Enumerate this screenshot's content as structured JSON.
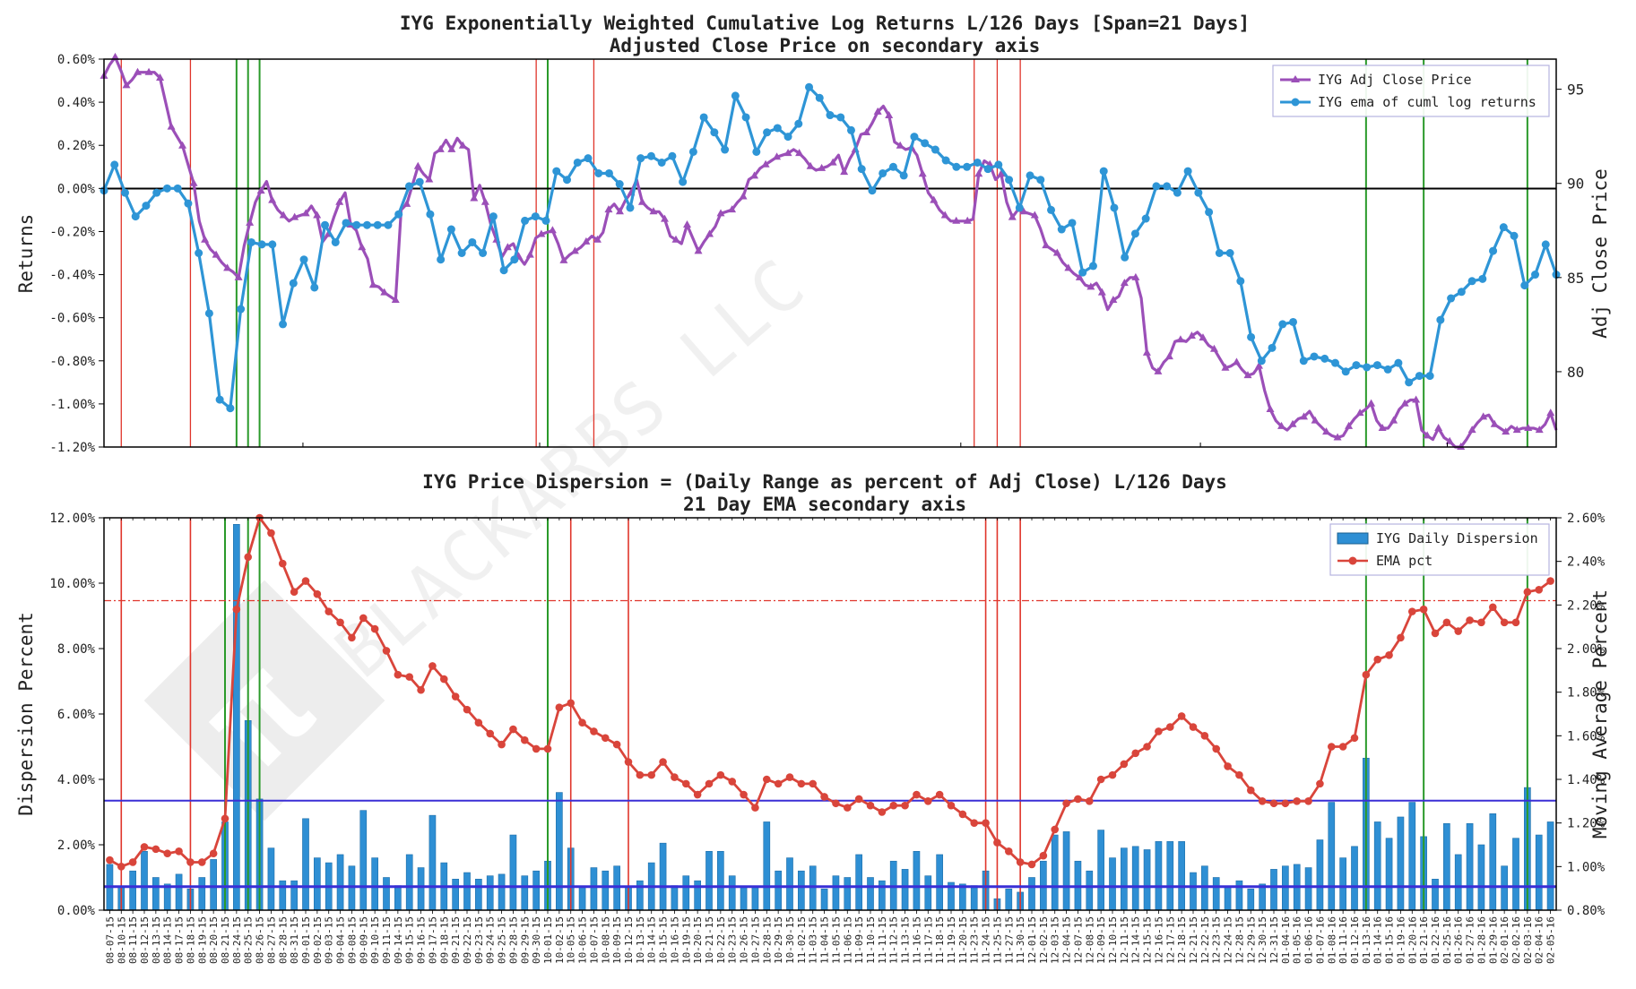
{
  "chart_data": [
    {
      "type": "line",
      "title": "IYG Exponentially Weighted Cumulative Log Returns L/126 Days [Span=21 Days]",
      "subtitle": "Adjusted Close Price on secondary axis",
      "ylabel": "Returns",
      "y2label": "Adj Close Price",
      "ylim": [
        -1.2,
        0.6
      ],
      "y2lim": [
        76.0,
        96.6
      ],
      "yticks": [
        "0.60%",
        "0.40%",
        "0.20%",
        "0.00%",
        "-0.20%",
        "-0.40%",
        "-0.60%",
        "-0.80%",
        "-1.00%",
        "-1.20%"
      ],
      "y2ticks": [
        "95",
        "90",
        "85",
        "80"
      ],
      "legend_position": "top-right",
      "series": [
        {
          "name": "IYG Adj Close Price",
          "axis": "secondary",
          "color": "#9b4fb8",
          "marker": "triangle",
          "values": [
            95.7,
            96.3,
            96.7,
            96.0,
            95.2,
            95.5,
            95.9,
            95.9,
            95.9,
            95.9,
            95.6,
            94.3,
            93.0,
            92.5,
            92.0,
            91.0,
            90.0,
            88.0,
            87.0,
            86.5,
            86.2,
            85.8,
            85.5,
            85.3,
            85.0,
            86.7,
            87.9,
            89.0,
            89.6,
            90.1,
            89.1,
            88.6,
            88.3,
            88.0,
            88.2,
            88.3,
            88.4,
            88.8,
            88.3,
            86.9,
            87.3,
            88.2,
            89.0,
            89.5,
            87.8,
            87.5,
            86.6,
            86.0,
            84.6,
            84.5,
            84.2,
            84.0,
            83.8,
            88.6,
            88.9,
            89.9,
            90.9,
            90.5,
            90.2,
            91.6,
            91.8,
            92.3,
            91.8,
            92.4,
            92.0,
            91.8,
            89.2,
            89.9,
            89.0,
            87.8,
            87.0,
            86.1,
            86.6,
            86.8,
            86.1,
            85.7,
            86.2,
            87.1,
            87.3,
            87.4,
            87.5,
            86.8,
            85.9,
            86.2,
            86.4,
            86.6,
            86.9,
            87.2,
            87.0,
            87.4,
            88.6,
            88.9,
            88.5,
            89.1,
            89.5,
            90.2,
            89.0,
            88.7,
            88.5,
            88.5,
            88.1,
            87.2,
            87.0,
            86.8,
            87.8,
            87.1,
            86.4,
            86.9,
            87.3,
            87.7,
            88.4,
            88.5,
            88.6,
            89.0,
            89.3,
            90.2,
            90.4,
            90.8,
            91.0,
            91.2,
            91.4,
            91.5,
            91.6,
            91.8,
            91.6,
            91.3,
            90.9,
            90.7,
            90.8,
            90.9,
            91.1,
            91.5,
            90.6,
            91.3,
            91.8,
            92.6,
            92.7,
            93.2,
            93.8,
            94.1,
            93.6,
            92.2,
            92.0,
            91.8,
            91.9,
            91.5,
            90.5,
            89.5,
            89.1,
            88.6,
            88.3,
            88.0,
            88.0,
            88.0,
            88.0,
            88.1,
            90.5,
            91.2,
            91.0,
            90.2,
            90.5,
            89.0,
            88.2,
            88.6,
            88.5,
            88.4,
            88.3,
            87.6,
            86.7,
            86.5,
            86.3,
            85.8,
            85.5,
            85.2,
            85.0,
            84.6,
            84.5,
            84.7,
            84.2,
            83.3,
            83.8,
            84.0,
            84.7,
            85.0,
            85.0,
            83.9,
            81.0,
            80.2,
            80.0,
            80.5,
            80.8,
            81.6,
            81.7,
            81.6,
            81.9,
            82.1,
            81.8,
            81.4,
            81.2,
            80.7,
            80.2,
            80.3,
            80.5,
            80.1,
            79.8,
            79.9,
            80.3,
            79.0,
            78.0,
            77.4,
            77.1,
            76.9,
            77.2,
            77.5,
            77.6,
            77.9,
            77.4,
            77.1,
            76.8,
            76.6,
            76.5,
            76.6,
            77.1,
            77.5,
            77.8,
            78.0,
            78.3,
            77.4,
            77.0,
            77.0,
            77.4,
            78.0,
            78.3,
            78.5,
            78.5,
            76.9,
            76.6,
            76.4,
            77.0,
            76.5,
            76.3,
            76.0,
            76.0,
            76.4,
            76.9,
            77.3,
            77.6,
            77.7,
            77.2,
            77.0,
            76.8,
            77.1,
            76.9,
            77.0,
            77.0,
            77.0,
            76.9,
            77.2,
            77.8,
            76.9
          ]
        },
        {
          "name": "IYG ema of cuml log returns",
          "axis": "primary",
          "color": "#2e95d6",
          "marker": "circle",
          "values": [
            -0.01,
            0.11,
            -0.02,
            -0.13,
            -0.08,
            -0.02,
            0.0,
            0.0,
            -0.07,
            -0.3,
            -0.58,
            -0.98,
            -1.02,
            -0.56,
            -0.25,
            -0.26,
            -0.26,
            -0.63,
            -0.44,
            -0.33,
            -0.46,
            -0.17,
            -0.25,
            -0.16,
            -0.17,
            -0.17,
            -0.17,
            -0.17,
            -0.12,
            0.01,
            0.03,
            -0.12,
            -0.33,
            -0.19,
            -0.3,
            -0.25,
            -0.3,
            -0.13,
            -0.38,
            -0.33,
            -0.15,
            -0.13,
            -0.15,
            0.08,
            0.04,
            0.12,
            0.14,
            0.07,
            0.07,
            0.02,
            -0.09,
            0.14,
            0.15,
            0.12,
            0.15,
            0.03,
            0.17,
            0.33,
            0.26,
            0.18,
            0.43,
            0.33,
            0.17,
            0.26,
            0.28,
            0.24,
            0.3,
            0.47,
            0.42,
            0.34,
            0.33,
            0.27,
            0.09,
            -0.01,
            0.07,
            0.1,
            0.06,
            0.24,
            0.21,
            0.18,
            0.13,
            0.1,
            0.1,
            0.12,
            0.09,
            0.11,
            0.04,
            -0.09,
            0.06,
            0.04,
            -0.1,
            -0.19,
            -0.16,
            -0.39,
            -0.36,
            0.08,
            -0.09,
            -0.32,
            -0.21,
            -0.14,
            0.01,
            0.01,
            -0.02,
            0.08,
            -0.02,
            -0.11,
            -0.3,
            -0.3,
            -0.43,
            -0.69,
            -0.8,
            -0.74,
            -0.63,
            -0.62,
            -0.8,
            -0.78,
            -0.79,
            -0.81,
            -0.85,
            -0.82,
            -0.83,
            -0.82,
            -0.84,
            -0.81,
            -0.9,
            -0.87,
            -0.87,
            -0.61,
            -0.51,
            -0.48,
            -0.43,
            -0.42,
            -0.29,
            -0.18,
            -0.22,
            -0.45,
            -0.4,
            -0.26,
            -0.4
          ]
        }
      ],
      "vlines": {
        "red": [
          "08-10-15",
          "08-18-15",
          "09-30-15",
          "10-07-15",
          "11-23-15",
          "11-25-15",
          "11-30-15"
        ],
        "green": [
          "08-24-15",
          "08-25-15",
          "08-26-15",
          "10-01-15",
          "01-13-16",
          "01-21-16",
          "02-03-16"
        ]
      }
    },
    {
      "type": "bar",
      "title": "IYG Price Dispersion = (Daily Range as percent of Adj Close) L/126 Days",
      "subtitle": "21 Day EMA secondary axis",
      "ylabel": "Dispersion Percent",
      "y2label": "Moving Average Percent",
      "ylim": [
        0,
        12
      ],
      "y2lim": [
        0.8,
        2.6
      ],
      "yticks": [
        "12.00%",
        "10.00%",
        "8.00%",
        "6.00%",
        "4.00%",
        "2.00%",
        "0.00%"
      ],
      "y2ticks": [
        "2.60%",
        "2.40%",
        "2.20%",
        "2.00%",
        "1.80%",
        "1.60%",
        "1.40%",
        "1.20%",
        "1.00%",
        "0.80%"
      ],
      "legend_position": "top-right",
      "hlines": {
        "blue_upper": 3.35,
        "blue_lower": 0.72,
        "red_dashdot_secondary": 2.22
      },
      "categories": [
        "08-07-15",
        "08-10-15",
        "08-11-15",
        "08-12-15",
        "08-13-15",
        "08-14-15",
        "08-17-15",
        "08-18-15",
        "08-19-15",
        "08-20-15",
        "08-21-15",
        "08-24-15",
        "08-25-15",
        "08-26-15",
        "08-27-15",
        "08-28-15",
        "08-31-15",
        "09-01-15",
        "09-02-15",
        "09-03-15",
        "09-04-15",
        "09-08-15",
        "09-09-15",
        "09-10-15",
        "09-11-15",
        "09-14-15",
        "09-15-15",
        "09-16-15",
        "09-17-15",
        "09-18-15",
        "09-21-15",
        "09-22-15",
        "09-23-15",
        "09-24-15",
        "09-25-15",
        "09-28-15",
        "09-29-15",
        "09-30-15",
        "10-01-15",
        "10-02-15",
        "10-05-15",
        "10-06-15",
        "10-07-15",
        "10-08-15",
        "10-09-15",
        "10-12-15",
        "10-13-15",
        "10-14-15",
        "10-15-15",
        "10-16-15",
        "10-19-15",
        "10-20-15",
        "10-21-15",
        "10-22-15",
        "10-23-15",
        "10-26-15",
        "10-27-15",
        "10-28-15",
        "10-29-15",
        "10-30-15",
        "11-02-15",
        "11-03-15",
        "11-04-15",
        "11-05-15",
        "11-06-15",
        "11-09-15",
        "11-10-15",
        "11-11-15",
        "11-12-15",
        "11-13-15",
        "11-16-15",
        "11-17-15",
        "11-18-15",
        "11-19-15",
        "11-20-15",
        "11-23-15",
        "11-24-15",
        "11-25-15",
        "11-27-15",
        "11-30-15",
        "12-01-15",
        "12-02-15",
        "12-03-15",
        "12-04-15",
        "12-07-15",
        "12-08-15",
        "12-09-15",
        "12-10-15",
        "12-11-15",
        "12-14-15",
        "12-15-15",
        "12-16-15",
        "12-17-15",
        "12-18-15",
        "12-21-15",
        "12-22-15",
        "12-23-15",
        "12-24-15",
        "12-28-15",
        "12-29-15",
        "12-30-15",
        "12-31-15",
        "01-04-16",
        "01-05-16",
        "01-06-16",
        "01-07-16",
        "01-08-16",
        "01-11-16",
        "01-12-16",
        "01-13-16",
        "01-14-16",
        "01-15-16",
        "01-19-16",
        "01-20-16",
        "01-21-16",
        "01-22-16",
        "01-25-16",
        "01-26-16",
        "01-27-16",
        "01-28-16",
        "01-29-16",
        "02-01-16",
        "02-02-16",
        "02-03-16",
        "02-04-16",
        "02-05-16"
      ],
      "series": [
        {
          "name": "IYG Daily Dispersion",
          "axis": "primary",
          "color": "#2e8fd4",
          "values": [
            1.4,
            0.7,
            1.2,
            1.8,
            1.0,
            0.8,
            1.1,
            0.65,
            1.0,
            1.55,
            2.7,
            11.8,
            5.8,
            3.4,
            1.9,
            0.9,
            0.9,
            2.8,
            1.6,
            1.45,
            1.7,
            1.35,
            3.05,
            1.6,
            1.0,
            0.75,
            1.7,
            1.3,
            2.9,
            1.45,
            0.95,
            1.15,
            0.95,
            1.05,
            1.1,
            2.3,
            1.05,
            1.2,
            1.5,
            3.6,
            1.9,
            0.7,
            1.3,
            1.2,
            1.35,
            0.7,
            0.9,
            1.45,
            2.05,
            0.75,
            1.05,
            0.9,
            1.8,
            1.8,
            1.05,
            0.7,
            0.7,
            2.7,
            1.2,
            1.6,
            1.2,
            1.35,
            0.65,
            1.05,
            1.0,
            1.7,
            1.0,
            0.9,
            1.5,
            1.25,
            1.8,
            1.05,
            1.7,
            0.85,
            0.8,
            0.75,
            1.2,
            0.35,
            0.65,
            0.55,
            1.0,
            1.5,
            2.3,
            2.4,
            1.5,
            1.2,
            2.45,
            1.6,
            1.9,
            1.95,
            1.85,
            2.1,
            2.1,
            2.1,
            1.15,
            1.35,
            1.0,
            0.7,
            0.9,
            0.65,
            0.8,
            1.25,
            1.35,
            1.4,
            1.3,
            2.15,
            3.3,
            1.6,
            1.95,
            4.65,
            2.7,
            2.2,
            2.85,
            3.3,
            2.25,
            0.95,
            2.65,
            1.7,
            2.65,
            2.0,
            2.95,
            1.35,
            2.2,
            3.75,
            2.3,
            2.7
          ]
        },
        {
          "name": "EMA pct",
          "axis": "secondary",
          "color": "#d9453b",
          "marker": "circle",
          "values": [
            1.03,
            1.0,
            1.02,
            1.09,
            1.08,
            1.06,
            1.07,
            1.02,
            1.02,
            1.06,
            1.22,
            2.18,
            2.42,
            2.6,
            2.53,
            2.39,
            2.26,
            2.31,
            2.25,
            2.17,
            2.12,
            2.05,
            2.14,
            2.09,
            1.99,
            1.88,
            1.87,
            1.81,
            1.92,
            1.86,
            1.78,
            1.72,
            1.66,
            1.61,
            1.56,
            1.63,
            1.58,
            1.54,
            1.54,
            1.73,
            1.75,
            1.66,
            1.62,
            1.59,
            1.56,
            1.48,
            1.42,
            1.42,
            1.48,
            1.41,
            1.38,
            1.33,
            1.38,
            1.42,
            1.39,
            1.33,
            1.27,
            1.4,
            1.38,
            1.41,
            1.38,
            1.38,
            1.32,
            1.29,
            1.27,
            1.31,
            1.28,
            1.25,
            1.28,
            1.28,
            1.33,
            1.3,
            1.33,
            1.28,
            1.24,
            1.2,
            1.2,
            1.11,
            1.07,
            1.02,
            1.01,
            1.05,
            1.17,
            1.29,
            1.31,
            1.3,
            1.4,
            1.42,
            1.47,
            1.52,
            1.55,
            1.62,
            1.64,
            1.69,
            1.64,
            1.6,
            1.54,
            1.46,
            1.42,
            1.35,
            1.3,
            1.29,
            1.29,
            1.3,
            1.3,
            1.38,
            1.55,
            1.55,
            1.59,
            1.88,
            1.95,
            1.97,
            2.05,
            2.17,
            2.18,
            2.07,
            2.12,
            2.08,
            2.13,
            2.12,
            2.19,
            2.12,
            2.12,
            2.26,
            2.27,
            2.31
          ]
        }
      ],
      "vlines": {
        "red": [
          "08-10-15",
          "08-18-15",
          "10-05-15",
          "10-12-15",
          "11-24-15",
          "11-25-15",
          "11-30-15"
        ],
        "green": [
          "08-21-15",
          "08-25-15",
          "08-26-15",
          "10-01-15",
          "01-13-16",
          "01-21-16",
          "02-03-16"
        ]
      }
    }
  ],
  "watermark": "BLACKARBS LLC"
}
